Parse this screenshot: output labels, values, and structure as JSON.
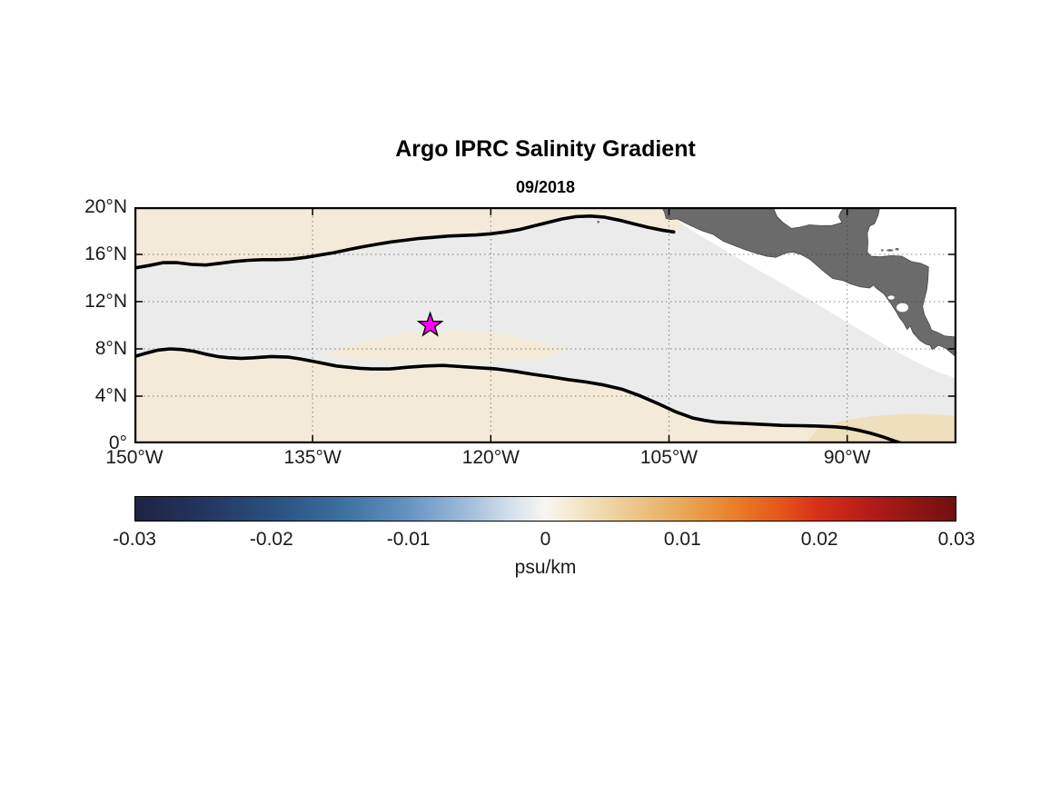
{
  "chart_data": {
    "type": "heatmap",
    "subtype": "filled_contour_map",
    "title": "Argo IPRC Salinity Gradient",
    "subtitle": "09/2018",
    "grid": "dotted",
    "lon_range_W": [
      150,
      80.8
    ],
    "lat_range_N": [
      0,
      20
    ],
    "x_axis": {
      "tick_values_lonW": [
        150,
        135,
        120,
        105,
        90
      ],
      "tick_labels": [
        "150°W",
        "135°W",
        "120°W",
        "105°W",
        "90°W"
      ]
    },
    "y_axis": {
      "tick_values_latN": [
        0,
        4,
        8,
        12,
        16,
        20
      ],
      "tick_labels": [
        "0°",
        "4°N",
        "8°N",
        "12°N",
        "16°N",
        "20°N"
      ]
    },
    "colorbar": {
      "label": "psu/km",
      "min": -0.03,
      "max": 0.03,
      "tick_values": [
        -0.03,
        -0.02,
        -0.01,
        0,
        0.01,
        0.02,
        0.03
      ],
      "tick_labels": [
        "-0.03",
        "-0.02",
        "-0.01",
        "0",
        "0.01",
        "0.02",
        "0.03"
      ],
      "stops": [
        {
          "pos": 0.0,
          "color": "#1f2342"
        },
        {
          "pos": 0.08,
          "color": "#23355e"
        },
        {
          "pos": 0.17,
          "color": "#2a517f"
        },
        {
          "pos": 0.25,
          "color": "#3a6fa0"
        },
        {
          "pos": 0.33,
          "color": "#6492bf"
        },
        {
          "pos": 0.4,
          "color": "#9db9d8"
        },
        {
          "pos": 0.46,
          "color": "#d6e1ec"
        },
        {
          "pos": 0.5,
          "color": "#f8f6f2"
        },
        {
          "pos": 0.54,
          "color": "#f3e6c9"
        },
        {
          "pos": 0.6,
          "color": "#ecca92"
        },
        {
          "pos": 0.67,
          "color": "#e9a656"
        },
        {
          "pos": 0.73,
          "color": "#ea7f28"
        },
        {
          "pos": 0.79,
          "color": "#e5531a"
        },
        {
          "pos": 0.83,
          "color": "#d93118"
        },
        {
          "pos": 0.9,
          "color": "#b01b18"
        },
        {
          "pos": 1.0,
          "color": "#701011"
        }
      ]
    },
    "field_colors": {
      "base_gray": "#ebebeb",
      "tan": "#f3ebd8",
      "tan_deep": "#eedfbd",
      "nodata": "#ffffff"
    },
    "marker": {
      "shape": "pentagram-star",
      "fill": "#ff00ff",
      "edge": "#000000",
      "lon_W": 125.1,
      "lat_N": 10.0
    },
    "zero_contours": [
      [
        [
          150,
          14.85
        ],
        [
          148.8,
          15.05
        ],
        [
          147.6,
          15.3
        ],
        [
          146.4,
          15.3
        ],
        [
          145.2,
          15.15
        ],
        [
          144,
          15.1
        ],
        [
          142.8,
          15.25
        ],
        [
          141.6,
          15.4
        ],
        [
          140.4,
          15.5
        ],
        [
          139.2,
          15.55
        ],
        [
          138,
          15.55
        ],
        [
          136.8,
          15.6
        ],
        [
          135.6,
          15.75
        ],
        [
          134.4,
          15.95
        ],
        [
          133.2,
          16.15
        ],
        [
          132,
          16.4
        ],
        [
          130.8,
          16.65
        ],
        [
          129.6,
          16.85
        ],
        [
          128.4,
          17.05
        ],
        [
          127.2,
          17.2
        ],
        [
          126,
          17.35
        ],
        [
          124.8,
          17.45
        ],
        [
          123.6,
          17.55
        ],
        [
          122.4,
          17.6
        ],
        [
          121.2,
          17.65
        ],
        [
          120,
          17.75
        ],
        [
          118.8,
          17.9
        ],
        [
          117.6,
          18.1
        ],
        [
          116.4,
          18.4
        ],
        [
          115.2,
          18.7
        ],
        [
          114,
          19.0
        ],
        [
          112.8,
          19.2
        ],
        [
          111.6,
          19.25
        ],
        [
          110.4,
          19.15
        ],
        [
          109.2,
          18.9
        ],
        [
          108,
          18.6
        ],
        [
          106.8,
          18.3
        ],
        [
          105.6,
          18.05
        ],
        [
          104.6,
          17.9
        ]
      ],
      [
        [
          150,
          7.35
        ],
        [
          149,
          7.65
        ],
        [
          148,
          7.9
        ],
        [
          147,
          8.0
        ],
        [
          146,
          7.95
        ],
        [
          145,
          7.8
        ],
        [
          144,
          7.55
        ],
        [
          143,
          7.35
        ],
        [
          142,
          7.25
        ],
        [
          141,
          7.2
        ],
        [
          140,
          7.25
        ],
        [
          138.5,
          7.35
        ],
        [
          137,
          7.3
        ],
        [
          136,
          7.15
        ],
        [
          134.5,
          6.85
        ],
        [
          133,
          6.55
        ],
        [
          132,
          6.45
        ],
        [
          131,
          6.35
        ],
        [
          130,
          6.3
        ],
        [
          128.5,
          6.3
        ],
        [
          127,
          6.45
        ],
        [
          125.5,
          6.55
        ],
        [
          124,
          6.6
        ],
        [
          122.5,
          6.5
        ],
        [
          121,
          6.4
        ],
        [
          119.5,
          6.3
        ],
        [
          118,
          6.1
        ],
        [
          116.5,
          5.85
        ],
        [
          115,
          5.65
        ],
        [
          113.5,
          5.4
        ],
        [
          112,
          5.2
        ],
        [
          110.5,
          4.95
        ],
        [
          109,
          4.6
        ],
        [
          107.5,
          4.05
        ],
        [
          106,
          3.4
        ],
        [
          104.5,
          2.7
        ],
        [
          103,
          2.15
        ],
        [
          102,
          1.95
        ],
        [
          101,
          1.8
        ],
        [
          100,
          1.75
        ],
        [
          98.5,
          1.68
        ],
        [
          97,
          1.6
        ],
        [
          95.5,
          1.52
        ],
        [
          94,
          1.5
        ],
        [
          92.5,
          1.47
        ],
        [
          91,
          1.4
        ],
        [
          90,
          1.3
        ],
        [
          89,
          1.1
        ],
        [
          88,
          0.85
        ],
        [
          87,
          0.55
        ],
        [
          86,
          0.2
        ],
        [
          85.4,
          0
        ]
      ]
    ],
    "tan_regions": [
      {
        "name": "north-of-front",
        "color": "tan",
        "from_contour": 0,
        "close": [
          [
            103.6,
            18.6
          ],
          [
            103.6,
            20
          ],
          [
            150,
            20
          ]
        ]
      },
      {
        "name": "south-of-front",
        "color": "tan",
        "from_contour": 1,
        "close": [
          [
            150,
            0
          ]
        ]
      },
      {
        "name": "mid-basin-tongue",
        "color": "tan",
        "points": [
          [
            134,
            7.6
          ],
          [
            130.5,
            8.7
          ],
          [
            127,
            9.35
          ],
          [
            123,
            9.55
          ],
          [
            119,
            9.25
          ],
          [
            116,
            8.6
          ],
          [
            113.5,
            7.85
          ],
          [
            115.5,
            7.2
          ],
          [
            119,
            7.0
          ],
          [
            124,
            7.0
          ],
          [
            129,
            7.0
          ],
          [
            132.5,
            7.2
          ]
        ]
      },
      {
        "name": "southeast-patch",
        "color": "tan_deep",
        "points": [
          [
            93.5,
            0
          ],
          [
            92.5,
            1.2
          ],
          [
            90.5,
            1.9
          ],
          [
            88,
            2.3
          ],
          [
            85,
            2.5
          ],
          [
            82.5,
            2.45
          ],
          [
            80.8,
            2.3
          ],
          [
            80.8,
            0
          ]
        ]
      }
    ],
    "nodata_region": [
      [
        105.4,
        20
      ],
      [
        104.6,
        19.2
      ],
      [
        103.6,
        18.35
      ],
      [
        102.4,
        17.6
      ],
      [
        101.2,
        16.9
      ],
      [
        99.8,
        16.05
      ],
      [
        98.4,
        15.2
      ],
      [
        96.9,
        14.35
      ],
      [
        95.4,
        13.5
      ],
      [
        93.9,
        12.6
      ],
      [
        92.4,
        11.7
      ],
      [
        90.9,
        10.8
      ],
      [
        89.4,
        9.9
      ],
      [
        87.9,
        9.0
      ],
      [
        86.4,
        8.1
      ],
      [
        84.9,
        7.25
      ],
      [
        83.4,
        6.5
      ],
      [
        82.0,
        5.9
      ],
      [
        80.8,
        5.5
      ],
      [
        80.8,
        20
      ]
    ],
    "land": {
      "color": "#6b6b6b",
      "edge": "#3f3f3f",
      "polygons": [
        [
          [
            105.6,
            20
          ],
          [
            105.35,
            19.5
          ],
          [
            105.25,
            19.05
          ],
          [
            104.9,
            18.95
          ],
          [
            104.3,
            19.0
          ],
          [
            103.7,
            18.7
          ],
          [
            103.0,
            18.35
          ],
          [
            102.2,
            18.0
          ],
          [
            101.3,
            17.7
          ],
          [
            100.4,
            17.1
          ],
          [
            99.5,
            16.75
          ],
          [
            98.6,
            16.4
          ],
          [
            97.7,
            16.1
          ],
          [
            96.8,
            15.85
          ],
          [
            96.0,
            15.75
          ],
          [
            95.2,
            16.1
          ],
          [
            94.6,
            16.2
          ],
          [
            93.9,
            16.0
          ],
          [
            93.1,
            15.55
          ],
          [
            92.3,
            14.85
          ],
          [
            91.9,
            14.5
          ],
          [
            91.2,
            13.95
          ],
          [
            90.4,
            13.8
          ],
          [
            89.7,
            13.5
          ],
          [
            88.9,
            13.25
          ],
          [
            88.1,
            13.15
          ],
          [
            87.8,
            13.4
          ],
          [
            87.5,
            13.1
          ],
          [
            86.9,
            12.65
          ],
          [
            86.3,
            11.8
          ],
          [
            85.85,
            11.1
          ],
          [
            85.6,
            10.65
          ],
          [
            85.25,
            10.2
          ],
          [
            84.95,
            9.65
          ],
          [
            84.7,
            9.95
          ],
          [
            84.45,
            9.35
          ],
          [
            83.9,
            8.75
          ],
          [
            83.4,
            8.4
          ],
          [
            83.0,
            8.3
          ],
          [
            82.85,
            7.95
          ],
          [
            82.3,
            8.3
          ],
          [
            81.7,
            8.05
          ],
          [
            81.0,
            7.45
          ],
          [
            80.8,
            7.4
          ],
          [
            80.8,
            9.0
          ],
          [
            81.8,
            9.1
          ],
          [
            82.4,
            9.4
          ],
          [
            82.9,
            9.6
          ],
          [
            83.05,
            10.0
          ],
          [
            83.5,
            10.9
          ],
          [
            83.65,
            11.6
          ],
          [
            83.5,
            12.2
          ],
          [
            83.3,
            13.0
          ],
          [
            83.2,
            13.8
          ],
          [
            83.15,
            14.95
          ],
          [
            83.8,
            15.25
          ],
          [
            84.6,
            15.4
          ],
          [
            85.4,
            15.85
          ],
          [
            86.3,
            15.9
          ],
          [
            87.2,
            15.8
          ],
          [
            88.0,
            15.85
          ],
          [
            88.3,
            16.2
          ],
          [
            88.25,
            17.0
          ],
          [
            88.3,
            17.8
          ],
          [
            88.1,
            18.4
          ],
          [
            87.7,
            18.6
          ],
          [
            87.4,
            19.3
          ],
          [
            87.25,
            20
          ],
          [
            90.2,
            20
          ],
          [
            90.55,
            19.6
          ],
          [
            90.7,
            19.2
          ],
          [
            90.45,
            18.7
          ],
          [
            91.3,
            18.45
          ],
          [
            92.3,
            18.45
          ],
          [
            93.2,
            18.5
          ],
          [
            94.0,
            18.3
          ],
          [
            94.7,
            18.2
          ],
          [
            95.4,
            18.7
          ],
          [
            95.9,
            19.2
          ],
          [
            96.2,
            19.9
          ],
          [
            96.25,
            20
          ]
        ]
      ],
      "lakes": [
        [
          85.35,
          11.5,
          0.5,
          0.38
        ],
        [
          86.3,
          12.35,
          0.28,
          0.16
        ]
      ],
      "islands": [
        [
          86.4,
          16.35,
          0.28,
          0.09
        ],
        [
          85.8,
          16.45,
          0.16,
          0.07
        ],
        [
          87.05,
          16.35,
          0.1,
          0.06
        ],
        [
          110.95,
          18.75,
          0.09,
          0.09
        ]
      ]
    }
  }
}
